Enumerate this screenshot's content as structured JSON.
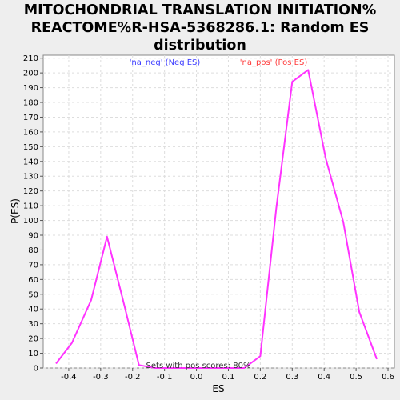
{
  "chart_data": {
    "type": "line",
    "title_lines": [
      "MITOCHONDRIAL TRANSLATION INITIATION%",
      "REACTOME%R-HSA-5368286.1: Random ES",
      "distribution"
    ],
    "xlabel": "ES",
    "ylabel": "P(ES)",
    "xlim": [
      -0.48,
      0.62
    ],
    "ylim": [
      0,
      212
    ],
    "x_ticks": [
      -0.4,
      -0.3,
      -0.2,
      -0.1,
      0.0,
      0.1,
      0.2,
      0.3,
      0.4,
      0.5,
      0.6
    ],
    "x_tick_labels": [
      "-0.4",
      "-0.3",
      "-0.2",
      "-0.1",
      "0.0",
      "0.1",
      "0.2",
      "0.3",
      "0.4",
      "0.5",
      "0.6"
    ],
    "y_ticks": [
      0,
      10,
      20,
      30,
      40,
      50,
      60,
      70,
      80,
      90,
      100,
      110,
      120,
      130,
      140,
      150,
      160,
      170,
      180,
      190,
      200,
      210
    ],
    "y_tick_labels": [
      "0",
      "10",
      "20",
      "30",
      "40",
      "50",
      "60",
      "70",
      "80",
      "90",
      "100",
      "110",
      "120",
      "130",
      "140",
      "150",
      "160",
      "170",
      "180",
      "190",
      "200",
      "210"
    ],
    "grid": true,
    "legend": [
      {
        "label": "'na_neg' (Neg ES)",
        "color": "#3a3aff"
      },
      {
        "label": "'na_pos' (Pos ES)",
        "color": "#ff3a3a"
      }
    ],
    "annotation": "Sets with pos scores: 80%",
    "series": [
      {
        "color": "#ff33ff",
        "x": [
          -0.44,
          -0.39,
          -0.33,
          -0.28,
          -0.23,
          -0.18,
          -0.13,
          -0.08,
          -0.03,
          0.02,
          0.07,
          0.12,
          0.15,
          0.2,
          0.25,
          0.3,
          0.35,
          0.405,
          0.46,
          0.51,
          0.565
        ],
        "y": [
          3,
          17,
          46,
          89,
          46,
          2,
          0,
          0,
          0,
          0,
          0,
          0,
          0,
          8,
          108,
          194,
          202,
          142,
          99,
          38,
          6
        ]
      }
    ]
  }
}
